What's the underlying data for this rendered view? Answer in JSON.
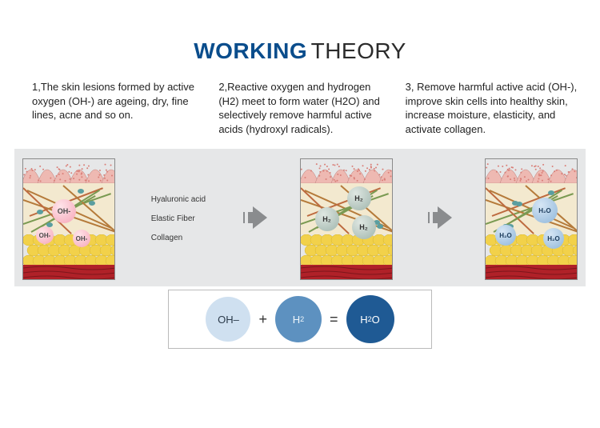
{
  "title": {
    "word1": "WORKING",
    "word2": "THEORY",
    "word1_color": "#0a4d8c",
    "word2_color": "#2b2b2b",
    "fontsize": 28
  },
  "steps": [
    {
      "text": "1,The skin lesions formed by active oxygen (OH-) are ageing, dry, fine lines, acne and so on."
    },
    {
      "text": "2,Reactive oxygen and hydrogen (H2) meet to form water (H2O) and selectively remove harmful active acids (hydroxyl radicals)."
    },
    {
      "text": "3, Remove harmful active acid (OH-), improve skin cells into healthy skin, increase moisture, elasticity, and activate collagen."
    }
  ],
  "legend": {
    "items": [
      "Hyaluronic acid",
      "Elastic Fiber",
      "Collagen"
    ]
  },
  "band_bg": "#e6e7e8",
  "skin": {
    "epidermis_color": "#eeb9b2",
    "epidermis_dots": "#d97f78",
    "dermis_bg": "#f3e9cf",
    "fiber_colors": [
      "#b57a3a",
      "#7a9a52",
      "#bd6a3f"
    ],
    "fat_color": "#f2d14a",
    "fat_shadow": "#d6b52f",
    "muscle_color": "#b02128",
    "muscle_dark": "#7d161b"
  },
  "diagrams": [
    {
      "bubbles": [
        {
          "type": "oh",
          "label": "OH-",
          "x": 36,
          "y": 50,
          "size": "normal"
        },
        {
          "type": "oh",
          "label": "OH-",
          "x": 16,
          "y": 84,
          "size": "small"
        },
        {
          "type": "oh",
          "label": "OH-",
          "x": 62,
          "y": 88,
          "size": "small"
        }
      ]
    },
    {
      "bubbles": [
        {
          "type": "h2",
          "label": "H₂",
          "x": 58,
          "y": 34,
          "size": "normal"
        },
        {
          "type": "h2",
          "label": "H₂",
          "x": 18,
          "y": 60,
          "size": "normal"
        },
        {
          "type": "h2",
          "label": "H₂",
          "x": 64,
          "y": 70,
          "size": "normal"
        }
      ]
    },
    {
      "bubbles": [
        {
          "type": "h2o",
          "label": "H₂O",
          "x": 58,
          "y": 48,
          "size": "normal"
        },
        {
          "type": "h2o",
          "label": "H₂O",
          "x": 12,
          "y": 82,
          "size": "small"
        },
        {
          "type": "h2o",
          "label": "H₂O",
          "x": 72,
          "y": 86,
          "size": "small"
        }
      ]
    }
  ],
  "arrow_color": "#8a8c8e",
  "equation": {
    "circles": [
      {
        "label": "OH–",
        "diameter": 56,
        "bg": "#cfe0f0",
        "text_color": "#2b3a4a"
      },
      {
        "label": "H₂",
        "diameter": 58,
        "bg": "#5d91c0",
        "text_color": "#eef5fb"
      },
      {
        "label": "H₂O",
        "diameter": 60,
        "bg": "#1f5a94",
        "text_color": "#ffffff"
      }
    ],
    "ops": [
      "+",
      "="
    ]
  }
}
